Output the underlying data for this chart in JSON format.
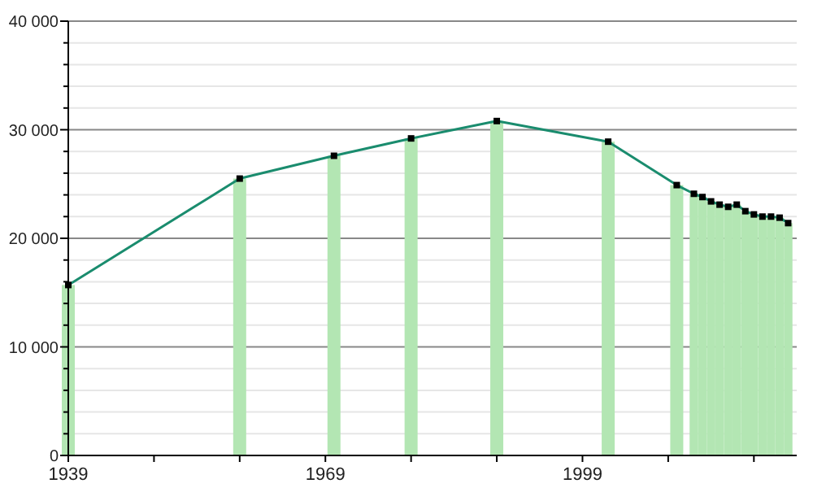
{
  "chart_data": {
    "type": "bar",
    "x": [
      1939,
      1959,
      1970,
      1979,
      1989,
      2002,
      2010,
      2012,
      2013,
      2014,
      2015,
      2016,
      2017,
      2018,
      2019,
      2020,
      2021,
      2022,
      2023
    ],
    "series": [
      {
        "color": "#b3e6b3",
        "values": [
          15700,
          25500,
          27600,
          29200,
          30800,
          28900,
          24900,
          24100,
          23800,
          23400,
          23100,
          22900,
          23100,
          22500,
          22200,
          22000,
          22000,
          21900,
          21400
        ]
      },
      {
        "type": "line",
        "color": "#1a8c6e",
        "marker": "square",
        "values": [
          15700,
          25500,
          27600,
          29200,
          30800,
          28900,
          24900,
          24100,
          23800,
          23400,
          23100,
          22900,
          23100,
          22500,
          22200,
          22000,
          22000,
          21900,
          21400
        ]
      }
    ],
    "xlim": [
      1939,
      2024
    ],
    "xticks": [
      1939,
      {
        "value": 1949,
        "label": null
      },
      {
        "value": 1959,
        "label": null
      },
      1969,
      {
        "value": 1979,
        "label": null
      },
      {
        "value": 1989,
        "label": null
      },
      1999,
      {
        "value": 2009,
        "label": null
      },
      {
        "value": 2019,
        "label": null
      }
    ],
    "ylim": [
      0,
      40000
    ],
    "yticks": [
      {
        "value": 0,
        "label": "0"
      },
      {
        "value": 2000,
        "label": null
      },
      {
        "value": 4000,
        "label": null
      },
      {
        "value": 6000,
        "label": null
      },
      {
        "value": 8000,
        "label": null
      },
      {
        "value": 10000,
        "label": "10 000"
      },
      {
        "value": 12000,
        "label": null
      },
      {
        "value": 14000,
        "label": null
      },
      {
        "value": 16000,
        "label": null
      },
      {
        "value": 18000,
        "label": null
      },
      {
        "value": 20000,
        "label": "20 000"
      },
      {
        "value": 22000,
        "label": null
      },
      {
        "value": 24000,
        "label": null
      },
      {
        "value": 26000,
        "label": null
      },
      {
        "value": 28000,
        "label": null
      },
      {
        "value": 30000,
        "label": "30 000"
      },
      {
        "value": 32000,
        "label": null
      },
      {
        "value": 34000,
        "label": null
      },
      {
        "value": 36000,
        "label": null
      },
      {
        "value": 38000,
        "label": null
      },
      {
        "value": 40000,
        "label": "40 000"
      }
    ],
    "grid": "y"
  }
}
